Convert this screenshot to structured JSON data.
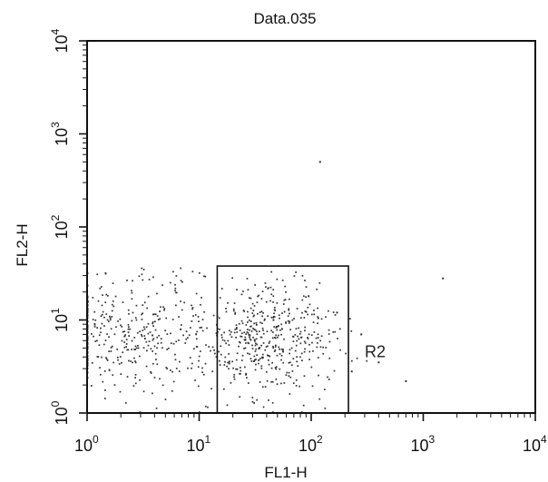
{
  "chart_data": {
    "type": "scatter",
    "title": "Data.035",
    "xlabel": "FL1-H",
    "ylabel": "FL2-H",
    "xscale": "log",
    "yscale": "log",
    "xlim": [
      1,
      10000
    ],
    "ylim": [
      1,
      10000
    ],
    "x_ticks": [
      {
        "base": "10",
        "exp": "0"
      },
      {
        "base": "10",
        "exp": "1"
      },
      {
        "base": "10",
        "exp": "2"
      },
      {
        "base": "10",
        "exp": "3"
      },
      {
        "base": "10",
        "exp": "4"
      }
    ],
    "y_ticks": [
      {
        "base": "10",
        "exp": "0"
      },
      {
        "base": "10",
        "exp": "1"
      },
      {
        "base": "10",
        "exp": "2"
      },
      {
        "base": "10",
        "exp": "3"
      },
      {
        "base": "10",
        "exp": "4"
      }
    ],
    "grid": false,
    "point_color": "#333333",
    "clusters": [
      {
        "center": [
          2.5,
          7
        ],
        "spread_decades": [
          0.45,
          0.32
        ],
        "count": 380
      },
      {
        "center": [
          40,
          6
        ],
        "spread_decades": [
          0.28,
          0.3
        ],
        "count": 460
      }
    ],
    "scattered_points": [
      [
        120,
        500
      ],
      [
        280,
        7
      ],
      [
        55,
        8
      ],
      [
        1500,
        28
      ],
      [
        230,
        2.8
      ],
      [
        170,
        12
      ],
      [
        95,
        18
      ],
      [
        400,
        3.5
      ],
      [
        700,
        2.2
      ]
    ],
    "region": {
      "name": "R2",
      "x_range": [
        14.5,
        215
      ],
      "y_range": [
        1,
        38
      ]
    }
  }
}
